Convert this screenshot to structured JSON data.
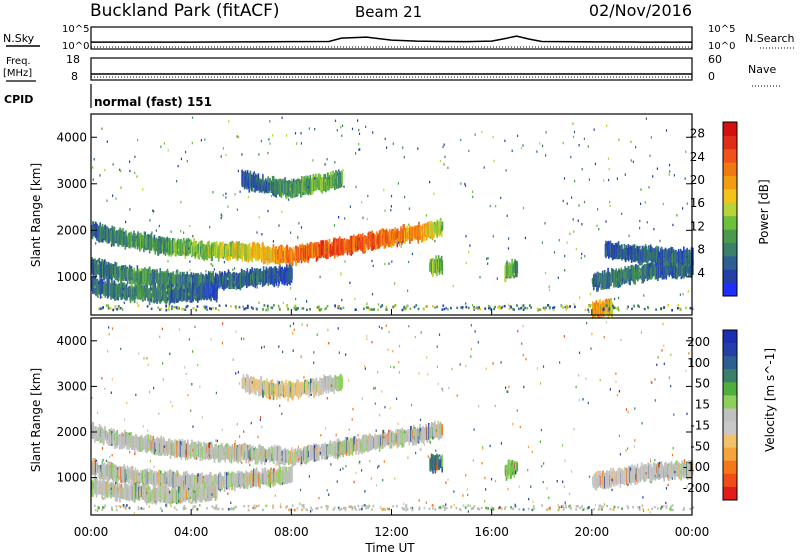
{
  "header": {
    "site": "Buckland Park (fitACF)",
    "beam": "Beam 21",
    "date": "02/Nov/2016"
  },
  "top_panels": {
    "nsky_label": "N.Sky",
    "nsky_ticks": [
      "10^5",
      "10^0"
    ],
    "nsearch_label": "N.Search",
    "nsearch_ticks": [
      "10^5",
      "10^0"
    ],
    "freq_label": "Freq.",
    "freq_unit": "[MHz]",
    "freq_ticks": [
      "18",
      "8"
    ],
    "nave_label": "Nave",
    "nave_ticks": [
      "60",
      "0"
    ],
    "cpid_label": "CPID",
    "cpid_value": "normal (fast) 151"
  },
  "colors": {
    "power_scale": [
      "#1f2fff",
      "#2440a8",
      "#2d5f93",
      "#3c7f6a",
      "#4a9a4e",
      "#6cc13a",
      "#b9d33b",
      "#f2c419",
      "#f39c12",
      "#f07a11",
      "#f0521a",
      "#e12c18",
      "#d40f0f"
    ],
    "velocity_scale": [
      "#e21b1b",
      "#f04d1a",
      "#f4781a",
      "#f5a33a",
      "#f2c26a",
      "#c8c8c8",
      "#c0c0c0",
      "#8ccf5a",
      "#4fae3c",
      "#3c7f6a",
      "#2d5f93",
      "#2440a8",
      "#1d2fb0"
    ],
    "ground_scatter": "#bdbdbd"
  },
  "chart_data": [
    {
      "type": "line",
      "title": "N.Sky",
      "x": [
        0,
        2,
        4,
        6,
        8,
        9.5,
        10,
        11,
        12,
        13,
        14,
        15,
        16,
        16.5,
        17,
        17.5,
        18,
        20,
        22,
        24
      ],
      "y": [
        0.35,
        0.35,
        0.35,
        0.36,
        0.37,
        0.38,
        0.55,
        0.6,
        0.45,
        0.4,
        0.38,
        0.37,
        0.4,
        0.52,
        0.65,
        0.5,
        0.38,
        0.36,
        0.35,
        0.35
      ],
      "xlim": [
        0,
        24
      ],
      "yticks": [
        "10^0",
        "10^5"
      ]
    },
    {
      "type": "heatmap",
      "title": "Power",
      "xlabel": "Time UT",
      "ylabel": "Slant Range [km]",
      "x_ticks": [
        "00:00",
        "04:00",
        "08:00",
        "12:00",
        "16:00",
        "20:00",
        "00:00"
      ],
      "y_ticks": [
        "1000",
        "2000",
        "3000",
        "4000"
      ],
      "xlim": [
        0,
        24
      ],
      "ylim": [
        180,
        4500
      ],
      "colorbar": {
        "label": "Power [dB]",
        "ticks": [
          "4",
          "8",
          "12",
          "16",
          "20",
          "24",
          "28"
        ],
        "range": [
          0,
          30
        ]
      },
      "bands": [
        {
          "t": [
            0,
            1,
            2,
            3,
            4,
            5,
            6,
            7,
            8,
            9,
            10,
            11,
            12,
            13,
            14
          ],
          "range_km": [
            2000,
            1850,
            1750,
            1650,
            1600,
            1550,
            1550,
            1500,
            1450,
            1550,
            1650,
            1750,
            1850,
            1950,
            2050
          ],
          "strength": [
            6,
            8,
            10,
            10,
            12,
            14,
            16,
            18,
            22,
            24,
            24,
            24,
            22,
            20,
            14
          ]
        },
        {
          "t": [
            0,
            1,
            2,
            3,
            4,
            5,
            6,
            7,
            8
          ],
          "range_km": [
            1200,
            1100,
            1000,
            950,
            900,
            900,
            950,
            1000,
            1050
          ],
          "strength": [
            6,
            8,
            10,
            8,
            8,
            6,
            6,
            6,
            4
          ]
        },
        {
          "t": [
            0,
            1,
            2,
            3,
            4,
            5
          ],
          "range_km": [
            800,
            700,
            650,
            600,
            650,
            700
          ],
          "strength": [
            6,
            8,
            10,
            8,
            6,
            4
          ]
        },
        {
          "t": [
            6,
            7,
            8,
            9,
            10
          ],
          "range_km": [
            3100,
            2950,
            2900,
            3000,
            3100
          ],
          "strength": [
            4,
            6,
            10,
            12,
            10
          ]
        },
        {
          "t": [
            20,
            21,
            22,
            23,
            24
          ],
          "range_km": [
            900,
            1000,
            1100,
            1150,
            1200
          ],
          "strength": [
            6,
            8,
            8,
            6,
            6
          ]
        },
        {
          "t": [
            20.5,
            21.5,
            22.5,
            24
          ],
          "range_km": [
            1600,
            1500,
            1450,
            1400
          ],
          "strength": [
            4,
            6,
            6,
            6
          ]
        },
        {
          "t": [
            13.5,
            14
          ],
          "range_km": [
            1200,
            1250
          ],
          "strength": [
            12,
            12
          ]
        },
        {
          "t": [
            16.5,
            17
          ],
          "range_km": [
            1100,
            1200
          ],
          "strength": [
            12,
            10
          ]
        },
        {
          "t": [
            20,
            20.8
          ],
          "range_km": [
            300,
            350
          ],
          "strength": [
            20,
            18
          ]
        }
      ]
    },
    {
      "type": "heatmap",
      "title": "Velocity",
      "xlabel": "Time UT",
      "ylabel": "Slant Range [km]",
      "x_ticks": [
        "00:00",
        "04:00",
        "08:00",
        "12:00",
        "16:00",
        "20:00",
        "00:00"
      ],
      "y_ticks": [
        "1000",
        "2000",
        "3000",
        "4000"
      ],
      "xlim": [
        0,
        24
      ],
      "ylim": [
        180,
        4500
      ],
      "colorbar": {
        "label": "Velocity [m s^-1]",
        "ticks": [
          "200",
          "100",
          "50",
          "15",
          "-15",
          "-50",
          "-100",
          "-200"
        ],
        "range": [
          -250,
          250
        ]
      },
      "bands": [
        {
          "t": [
            0,
            1,
            2,
            3,
            4,
            5,
            6,
            7,
            8,
            9,
            10,
            11,
            12,
            13,
            14
          ],
          "range_km": [
            2000,
            1850,
            1750,
            1650,
            1600,
            1550,
            1550,
            1500,
            1450,
            1550,
            1650,
            1750,
            1850,
            1950,
            2050
          ],
          "velocity": [
            0,
            0,
            0,
            0,
            0,
            0,
            0,
            0,
            0,
            0,
            0,
            0,
            0,
            0,
            0
          ]
        },
        {
          "t": [
            0,
            1,
            2,
            3,
            4,
            5,
            6,
            7,
            8
          ],
          "range_km": [
            1200,
            1100,
            1000,
            950,
            900,
            900,
            950,
            1000,
            1050
          ],
          "velocity": [
            0,
            0,
            0,
            0,
            0,
            0,
            0,
            0,
            0
          ]
        },
        {
          "t": [
            0,
            1,
            2,
            3,
            4,
            5
          ],
          "range_km": [
            800,
            700,
            650,
            600,
            650,
            700
          ],
          "velocity": [
            0,
            0,
            0,
            0,
            0,
            0
          ]
        },
        {
          "t": [
            6,
            7,
            8,
            9,
            10
          ],
          "range_km": [
            3100,
            2950,
            2900,
            3000,
            3100
          ],
          "velocity": [
            -40,
            -60,
            -80,
            -40,
            30
          ]
        },
        {
          "t": [
            20,
            21,
            22,
            23,
            24
          ],
          "range_km": [
            900,
            1000,
            1100,
            1150,
            1200
          ],
          "velocity": [
            -30,
            -40,
            -20,
            -10,
            0
          ]
        },
        {
          "t": [
            13.5,
            14
          ],
          "range_km": [
            1300,
            1350
          ],
          "velocity": [
            120,
            150
          ]
        },
        {
          "t": [
            16.5,
            17
          ],
          "range_km": [
            1150,
            1250
          ],
          "velocity": [
            60,
            50
          ]
        }
      ]
    }
  ]
}
